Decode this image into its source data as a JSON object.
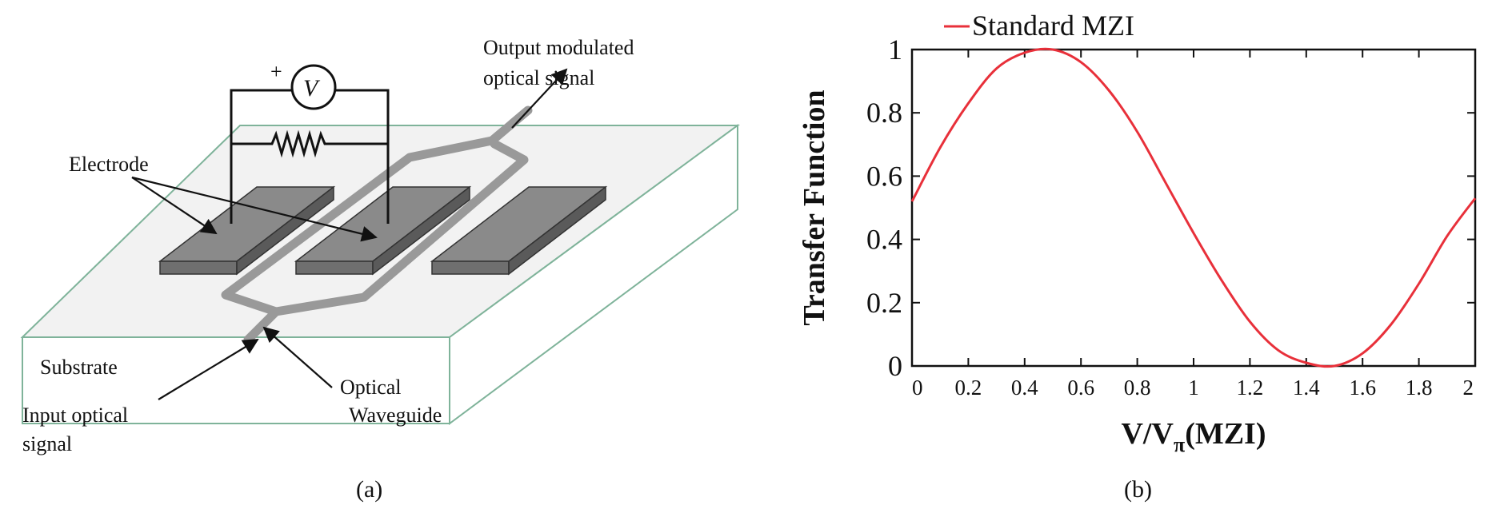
{
  "panel_a": {
    "caption": "(a)",
    "labels": {
      "output_line1": "Output modulated",
      "output_line2": "optical signal",
      "voltage_plus": "+",
      "voltage_symbol": "V",
      "electrode": "Electrode",
      "substrate": "Substrate",
      "input_line1": "Input optical",
      "input_line2": "signal",
      "waveguide_line1": "Optical",
      "waveguide_line2": "Waveguide"
    },
    "colors": {
      "substrate_edge": "#7fb39a",
      "substrate_fill": "#f2f2f2",
      "electrode": "#8a8a8a",
      "waveguide": "#999999"
    }
  },
  "panel_b": {
    "caption": "(b)",
    "chart_data": {
      "type": "line",
      "xlabel_main": "V/V",
      "xlabel_sub": "π",
      "xlabel_tail": "(MZI)",
      "ylabel": "Transfer Function",
      "xlim": [
        0,
        2
      ],
      "ylim": [
        0,
        1
      ],
      "xticks": [
        "0",
        "0.2",
        "0.4",
        "0.6",
        "0.8",
        "1",
        "1.2",
        "1.4",
        "1.6",
        "1.8",
        "2"
      ],
      "yticks": [
        "0",
        "0.2",
        "0.4",
        "0.6",
        "0.8",
        "1"
      ],
      "legend_placement": "top-left",
      "grid": false,
      "series": [
        {
          "name": "Standard MZI",
          "color": "#e8303a",
          "x": [
            0,
            0.1,
            0.2,
            0.3,
            0.4,
            0.5,
            0.6,
            0.7,
            0.8,
            0.9,
            1.0,
            1.1,
            1.2,
            1.3,
            1.4,
            1.5,
            1.6,
            1.7,
            1.8,
            1.9,
            2.0
          ],
          "y": [
            0.52,
            0.69,
            0.83,
            0.94,
            0.99,
            1.0,
            0.96,
            0.87,
            0.74,
            0.58,
            0.42,
            0.27,
            0.14,
            0.05,
            0.01,
            0.0,
            0.04,
            0.13,
            0.26,
            0.41,
            0.53
          ]
        }
      ]
    }
  }
}
